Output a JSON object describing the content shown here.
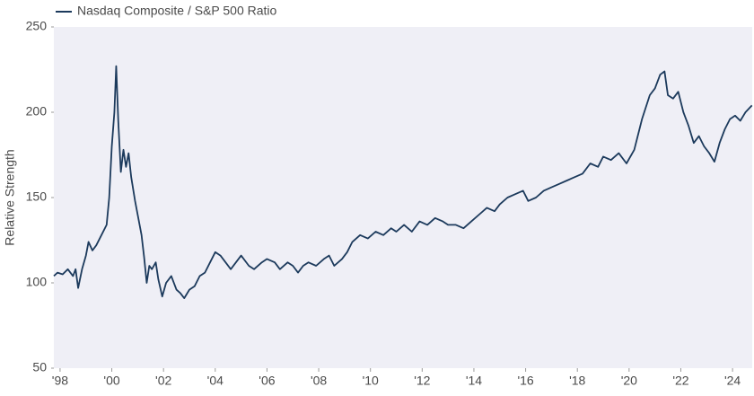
{
  "chart_data": {
    "type": "line",
    "y_label": "Relative Strength",
    "series": [
      {
        "name": "Nasdaq Composite / S&P 500 Ratio",
        "color": "#1c3a5c",
        "x": [
          1997.76,
          1997.9,
          1998.1,
          1998.3,
          1998.5,
          1998.6,
          1998.7,
          1998.85,
          1999.0,
          1999.1,
          1999.25,
          1999.4,
          1999.6,
          1999.8,
          1999.9,
          2000.0,
          2000.1,
          2000.17,
          2000.25,
          2000.35,
          2000.45,
          2000.55,
          2000.65,
          2000.75,
          2000.9,
          2001.0,
          2001.15,
          2001.25,
          2001.35,
          2001.45,
          2001.55,
          2001.7,
          2001.8,
          2001.95,
          2002.1,
          2002.3,
          2002.5,
          2002.65,
          2002.8,
          2003.0,
          2003.2,
          2003.4,
          2003.6,
          2003.8,
          2004.0,
          2004.2,
          2004.4,
          2004.6,
          2004.8,
          2005.0,
          2005.3,
          2005.5,
          2005.8,
          2006.0,
          2006.3,
          2006.5,
          2006.8,
          2007.0,
          2007.2,
          2007.4,
          2007.6,
          2007.9,
          2008.2,
          2008.4,
          2008.6,
          2008.9,
          2009.1,
          2009.3,
          2009.6,
          2009.9,
          2010.2,
          2010.5,
          2010.8,
          2011.0,
          2011.3,
          2011.6,
          2011.9,
          2012.2,
          2012.5,
          2012.8,
          2013.0,
          2013.3,
          2013.6,
          2013.9,
          2014.2,
          2014.5,
          2014.8,
          2015.0,
          2015.3,
          2015.6,
          2015.9,
          2016.1,
          2016.4,
          2016.7,
          2017.0,
          2017.3,
          2017.6,
          2017.9,
          2018.2,
          2018.5,
          2018.8,
          2019.0,
          2019.3,
          2019.6,
          2019.9,
          2020.2,
          2020.5,
          2020.8,
          2021.0,
          2021.2,
          2021.37,
          2021.5,
          2021.7,
          2021.9,
          2022.1,
          2022.3,
          2022.5,
          2022.7,
          2022.9,
          2023.1,
          2023.3,
          2023.5,
          2023.7,
          2023.9,
          2024.1,
          2024.3,
          2024.5,
          2024.75
        ],
        "values": [
          104,
          106,
          105,
          108,
          104,
          108,
          97,
          108,
          116,
          124,
          119,
          122,
          128,
          134,
          150,
          180,
          200,
          227,
          195,
          165,
          178,
          168,
          176,
          162,
          148,
          140,
          128,
          115,
          100,
          110,
          108,
          112,
          102,
          92,
          100,
          104,
          96,
          94,
          91,
          96,
          98,
          104,
          106,
          112,
          118,
          116,
          112,
          108,
          112,
          116,
          110,
          108,
          112,
          114,
          112,
          108,
          112,
          110,
          106,
          110,
          112,
          110,
          114,
          116,
          110,
          114,
          118,
          124,
          128,
          126,
          130,
          128,
          132,
          130,
          134,
          130,
          136,
          134,
          138,
          136,
          134,
          134,
          132,
          136,
          140,
          144,
          142,
          146,
          150,
          152,
          154,
          148,
          150,
          154,
          156,
          158,
          160,
          162,
          164,
          170,
          168,
          174,
          172,
          176,
          170,
          178,
          196,
          210,
          214,
          222,
          224,
          210,
          208,
          212,
          200,
          192,
          182,
          186,
          180,
          176,
          171,
          182,
          190,
          196,
          198,
          195,
          200,
          204
        ]
      }
    ],
    "xlim": [
      1997.76,
      2024.76
    ],
    "xticks": [
      {
        "value": 1998,
        "label": "'98"
      },
      {
        "value": 2000,
        "label": "'00"
      },
      {
        "value": 2002,
        "label": "'02"
      },
      {
        "value": 2004,
        "label": "'04"
      },
      {
        "value": 2006,
        "label": "'06"
      },
      {
        "value": 2008,
        "label": "'08"
      },
      {
        "value": 2010,
        "label": "'10"
      },
      {
        "value": 2012,
        "label": "'12"
      },
      {
        "value": 2014,
        "label": "'14"
      },
      {
        "value": 2016,
        "label": "'16"
      },
      {
        "value": 2018,
        "label": "'18"
      },
      {
        "value": 2020,
        "label": "'20"
      },
      {
        "value": 2022,
        "label": "'22"
      },
      {
        "value": 2024,
        "label": "'24"
      }
    ],
    "ylim": [
      50,
      250
    ],
    "yticks": [
      50,
      100,
      150,
      200,
      250
    ]
  }
}
